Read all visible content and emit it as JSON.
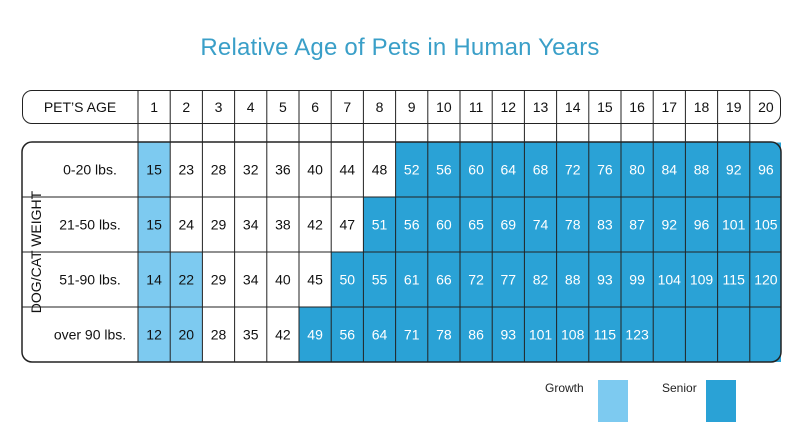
{
  "title": "Relative Age of Pets in Human Years",
  "colors": {
    "growth": "#7dcaf0",
    "senior": "#2aa2d6",
    "border": "#222222",
    "title": "#3a9fc8"
  },
  "legend": {
    "growth_label": "Growth",
    "senior_label": "Senior"
  },
  "chart_data": {
    "type": "table",
    "title": "Relative Age of Pets in Human Years",
    "header_label": "PET’S AGE",
    "row_axis_label": "DOG/CAT WEIGHT",
    "ages": [
      1,
      2,
      3,
      4,
      5,
      6,
      7,
      8,
      9,
      10,
      11,
      12,
      13,
      14,
      15,
      16,
      17,
      18,
      19,
      20
    ],
    "rows": [
      {
        "label": "0-20 lbs.",
        "values": [
          15,
          23,
          28,
          32,
          36,
          40,
          44,
          48,
          52,
          56,
          60,
          64,
          68,
          72,
          76,
          80,
          84,
          88,
          92,
          96
        ],
        "growth_through_age": 1,
        "senior_from_age": 9
      },
      {
        "label": "21-50 lbs.",
        "values": [
          15,
          24,
          29,
          34,
          38,
          42,
          47,
          51,
          56,
          60,
          65,
          69,
          74,
          78,
          83,
          87,
          92,
          96,
          101,
          105
        ],
        "growth_through_age": 1,
        "senior_from_age": 8
      },
      {
        "label": "51-90 lbs.",
        "values": [
          14,
          22,
          29,
          34,
          40,
          45,
          50,
          55,
          61,
          66,
          72,
          77,
          82,
          88,
          93,
          99,
          104,
          109,
          115,
          120
        ],
        "growth_through_age": 2,
        "senior_from_age": 7
      },
      {
        "label": "over 90 lbs.",
        "values": [
          12,
          20,
          28,
          35,
          42,
          49,
          56,
          64,
          71,
          78,
          86,
          93,
          101,
          108,
          115,
          123,
          null,
          null,
          null,
          null
        ],
        "growth_through_age": 2,
        "senior_from_age": 6
      }
    ],
    "legend": [
      "Growth",
      "Senior"
    ]
  }
}
